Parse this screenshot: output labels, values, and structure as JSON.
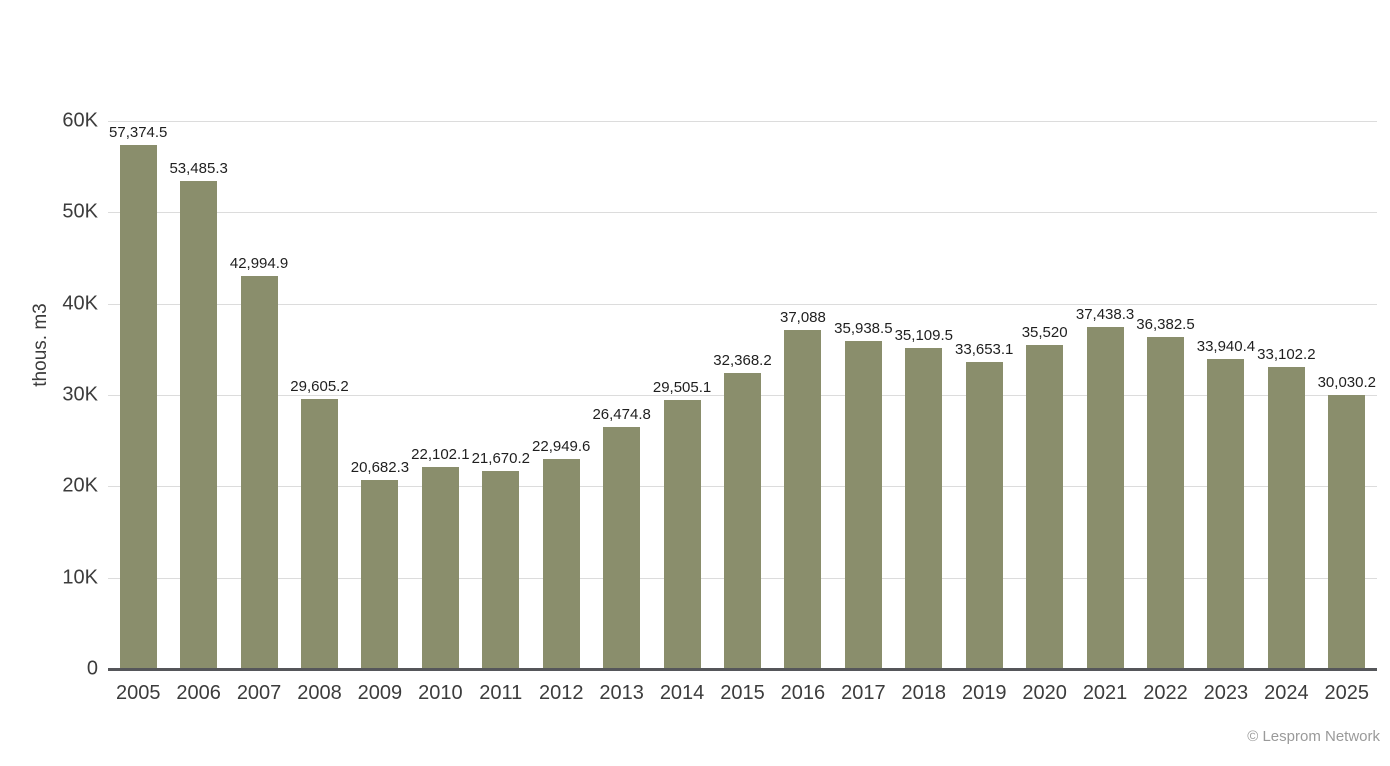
{
  "chart_data": {
    "type": "bar",
    "title": "",
    "xlabel": "",
    "ylabel": "thous. m3",
    "categories": [
      "2005",
      "2006",
      "2007",
      "2008",
      "2009",
      "2010",
      "2011",
      "2012",
      "2013",
      "2014",
      "2015",
      "2016",
      "2017",
      "2018",
      "2019",
      "2020",
      "2021",
      "2022",
      "2023",
      "2024",
      "2025"
    ],
    "values": [
      57374.5,
      53485.3,
      42994.9,
      29605.2,
      20682.3,
      22102.1,
      21670.2,
      22949.6,
      26474.8,
      29505.1,
      32368.2,
      37088,
      35938.5,
      35109.5,
      33653.1,
      35520,
      37438.3,
      36382.5,
      33940.4,
      33102.2,
      30030.2
    ],
    "value_labels": [
      "57,374.5",
      "53,485.3",
      "42,994.9",
      "29,605.2",
      "20,682.3",
      "22,102.1",
      "21,670.2",
      "22,949.6",
      "26,474.8",
      "29,505.1",
      "32,368.2",
      "37,088",
      "35,938.5",
      "35,109.5",
      "33,653.1",
      "35,520",
      "37,438.3",
      "36,382.5",
      "33,940.4",
      "33,102.2",
      "30,030.2"
    ],
    "ylim": [
      0,
      60000
    ],
    "yticks": [
      {
        "value": 0,
        "label": "0"
      },
      {
        "value": 10000,
        "label": "10K"
      },
      {
        "value": 20000,
        "label": "20K"
      },
      {
        "value": 30000,
        "label": "30K"
      },
      {
        "value": 40000,
        "label": "40K"
      },
      {
        "value": 50000,
        "label": "50K"
      },
      {
        "value": 60000,
        "label": "60K"
      }
    ],
    "grid": "horizontal",
    "legend": "none",
    "colors": {
      "bar": "#8A8E6C",
      "grid": "#DCDCDC",
      "axis": "#55565A",
      "tick_label": "#3C3C3C",
      "value_label": "#1F1F1F",
      "attribution": "#9A9A9A"
    }
  },
  "footer": {
    "attribution": "© Lesprom Network"
  }
}
